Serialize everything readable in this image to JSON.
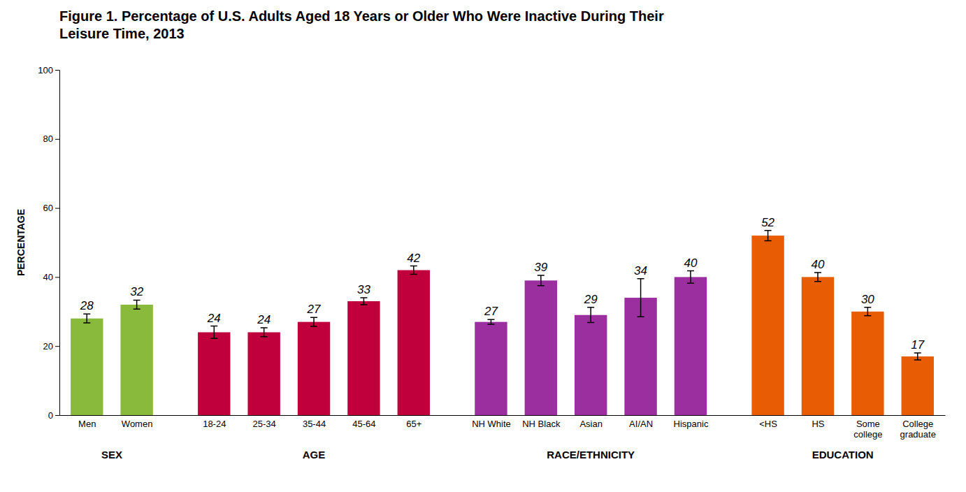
{
  "chart_data": {
    "type": "bar",
    "title": "Figure 1. Percentage of U.S. Adults Aged 18 Years or Older Who Were Inactive During Their\nLeisure Time, 2013",
    "y_label": "PERCENTAGE",
    "categories": [
      "Men",
      "Women",
      "18-24",
      "25-34",
      "35-44",
      "45-64",
      "65+",
      "NH White",
      "NH Black",
      "Asian",
      "AI/AN",
      "Hispanic",
      "<HS",
      "HS",
      "Some\ncollege",
      "College\ngraduate"
    ],
    "category_groups": [
      "SEX",
      "SEX",
      "AGE",
      "AGE",
      "AGE",
      "AGE",
      "AGE",
      "RACE/ETHNICITY",
      "RACE/ETHNICITY",
      "RACE/ETHNICITY",
      "RACE/ETHNICITY",
      "RACE/ETHNICITY",
      "EDUCATION",
      "EDUCATION",
      "EDUCATION",
      "EDUCATION"
    ],
    "values": [
      28,
      32,
      24,
      24,
      27,
      33,
      42,
      27,
      39,
      29,
      34,
      40,
      52,
      40,
      30,
      17
    ],
    "errors": [
      1.3,
      1.3,
      1.8,
      1.3,
      1.3,
      1.0,
      1.2,
      0.7,
      1.5,
      2.2,
      5.5,
      1.8,
      1.5,
      1.3,
      1.2,
      1.0
    ],
    "colors": [
      "#8aba3b",
      "#8aba3b",
      "#c0003c",
      "#c0003c",
      "#c0003c",
      "#c0003c",
      "#c0003c",
      "#9b2fa0",
      "#9b2fa0",
      "#9b2fa0",
      "#9b2fa0",
      "#9b2fa0",
      "#e85d04",
      "#e85d04",
      "#e85d04",
      "#e85d04"
    ],
    "ylim": [
      0,
      100
    ],
    "yticks": [
      0,
      20,
      40,
      60,
      80,
      100
    ],
    "grid": false,
    "data_labels": true
  }
}
